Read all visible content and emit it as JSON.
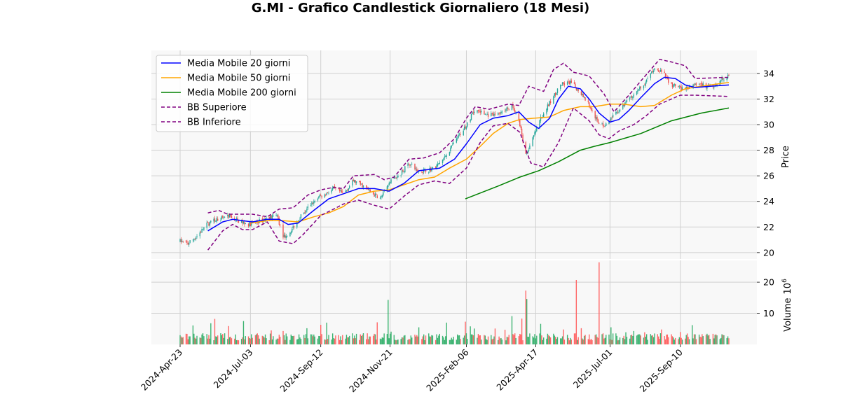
{
  "chart_data": {
    "type": "candlestick",
    "title": "G.MI - Grafico Candlestick Giornaliero (18 Mesi)",
    "price_panel": {
      "ylabel": "Price",
      "ylim": [
        19.5,
        35.8
      ],
      "yticks": [
        20,
        22,
        24,
        26,
        28,
        30,
        32,
        34
      ],
      "grid": true
    },
    "volume_panel": {
      "ylabel": "Volume",
      "ylabel_exponent": "6",
      "ylim": [
        0,
        27
      ],
      "yticks": [
        10,
        20
      ],
      "grid": true
    },
    "xlim": [
      "2024-04-23",
      "2025-10-29"
    ],
    "xticks": [
      "2024-Apr-23",
      "2024-Jul-03",
      "2024-Sep-12",
      "2024-Nov-21",
      "2025-Feb-06",
      "2025-Apr-17",
      "2025-Jul-01",
      "2025-Sep-10"
    ],
    "xtick_dates": [
      "2024-04-23",
      "2024-07-03",
      "2024-09-12",
      "2024-11-21",
      "2025-02-06",
      "2025-04-17",
      "2025-07-01",
      "2025-09-10"
    ],
    "legend": {
      "placement": "top-left",
      "entries": [
        {
          "label": "Media Mobile 20 giorni",
          "color": "#0000ff",
          "dash": "solid"
        },
        {
          "label": "Media Mobile 50 giorni",
          "color": "#ffa500",
          "dash": "solid"
        },
        {
          "label": "Media Mobile 200 giorni",
          "color": "#008000",
          "dash": "solid"
        },
        {
          "label": "BB Superiore",
          "color": "#800080",
          "dash": "dashed"
        },
        {
          "label": "BB Inferiore",
          "color": "#800080",
          "dash": "dashed"
        }
      ]
    },
    "colors": {
      "up": "#26a69a",
      "down": "#ef5350",
      "up_volume": "#3cb371",
      "down_volume": "#ff6666"
    },
    "close_path": [
      [
        "2024-04-23",
        20.9
      ],
      [
        "2024-05-01",
        20.7
      ],
      [
        "2024-05-10",
        21.3
      ],
      [
        "2024-05-20",
        22.2
      ],
      [
        "2024-05-30",
        22.6
      ],
      [
        "2024-06-10",
        22.9
      ],
      [
        "2024-06-20",
        22.5
      ],
      [
        "2024-07-01",
        22.2
      ],
      [
        "2024-07-10",
        22.4
      ],
      [
        "2024-07-20",
        22.7
      ],
      [
        "2024-07-30",
        22.9
      ],
      [
        "2024-08-05",
        21.2
      ],
      [
        "2024-08-12",
        21.6
      ],
      [
        "2024-08-22",
        22.8
      ],
      [
        "2024-09-01",
        23.7
      ],
      [
        "2024-09-12",
        24.4
      ],
      [
        "2024-09-25",
        25.0
      ],
      [
        "2024-10-05",
        24.6
      ],
      [
        "2024-10-15",
        25.6
      ],
      [
        "2024-10-25",
        25.2
      ],
      [
        "2024-11-05",
        24.5
      ],
      [
        "2024-11-12",
        24.3
      ],
      [
        "2024-11-21",
        25.5
      ],
      [
        "2024-12-01",
        26.1
      ],
      [
        "2024-12-10",
        27.0
      ],
      [
        "2024-12-20",
        26.3
      ],
      [
        "2025-01-05",
        26.6
      ],
      [
        "2025-01-15",
        27.4
      ],
      [
        "2025-01-25",
        28.6
      ],
      [
        "2025-02-06",
        30.0
      ],
      [
        "2025-02-15",
        31.2
      ],
      [
        "2025-02-25",
        30.8
      ],
      [
        "2025-03-05",
        30.7
      ],
      [
        "2025-03-15",
        31.1
      ],
      [
        "2025-03-25",
        31.4
      ],
      [
        "2025-04-01",
        30.0
      ],
      [
        "2025-04-07",
        27.6
      ],
      [
        "2025-04-12",
        28.5
      ],
      [
        "2025-04-22",
        30.5
      ],
      [
        "2025-05-02",
        31.8
      ],
      [
        "2025-05-12",
        33.1
      ],
      [
        "2025-05-22",
        33.3
      ],
      [
        "2025-06-01",
        32.6
      ],
      [
        "2025-06-10",
        31.5
      ],
      [
        "2025-06-18",
        30.3
      ],
      [
        "2025-06-26",
        29.9
      ],
      [
        "2025-07-05",
        30.7
      ],
      [
        "2025-07-15",
        31.5
      ],
      [
        "2025-07-25",
        32.3
      ],
      [
        "2025-08-05",
        33.2
      ],
      [
        "2025-08-15",
        34.4
      ],
      [
        "2025-08-22",
        34.2
      ],
      [
        "2025-09-01",
        33.1
      ],
      [
        "2025-09-10",
        32.8
      ],
      [
        "2025-09-20",
        33.0
      ],
      [
        "2025-10-01",
        33.2
      ],
      [
        "2025-10-10",
        32.9
      ],
      [
        "2025-10-20",
        33.4
      ],
      [
        "2025-10-29",
        33.9
      ]
    ],
    "ma20": [
      [
        "2024-05-21",
        21.7
      ],
      [
        "2024-06-05",
        22.4
      ],
      [
        "2024-06-15",
        22.6
      ],
      [
        "2024-06-25",
        22.5
      ],
      [
        "2024-07-05",
        22.4
      ],
      [
        "2024-07-20",
        22.6
      ],
      [
        "2024-08-01",
        22.6
      ],
      [
        "2024-08-10",
        22.2
      ],
      [
        "2024-08-20",
        22.3
      ],
      [
        "2024-09-05",
        23.3
      ],
      [
        "2024-09-20",
        24.2
      ],
      [
        "2024-10-05",
        24.6
      ],
      [
        "2024-10-20",
        25.0
      ],
      [
        "2024-11-05",
        25.0
      ],
      [
        "2024-11-20",
        24.8
      ],
      [
        "2024-12-05",
        25.4
      ],
      [
        "2024-12-20",
        26.4
      ],
      [
        "2025-01-10",
        26.6
      ],
      [
        "2025-01-25",
        27.3
      ],
      [
        "2025-02-06",
        28.5
      ],
      [
        "2025-02-20",
        30.0
      ],
      [
        "2025-03-05",
        30.5
      ],
      [
        "2025-03-20",
        30.7
      ],
      [
        "2025-03-31",
        31.0
      ],
      [
        "2025-04-10",
        30.2
      ],
      [
        "2025-04-20",
        29.7
      ],
      [
        "2025-05-01",
        30.5
      ],
      [
        "2025-05-10",
        32.0
      ],
      [
        "2025-05-20",
        33.0
      ],
      [
        "2025-06-01",
        32.8
      ],
      [
        "2025-06-10",
        32.0
      ],
      [
        "2025-06-20",
        30.9
      ],
      [
        "2025-07-01",
        30.2
      ],
      [
        "2025-07-10",
        30.4
      ],
      [
        "2025-07-20",
        31.1
      ],
      [
        "2025-08-01",
        32.1
      ],
      [
        "2025-08-15",
        33.2
      ],
      [
        "2025-08-25",
        33.7
      ],
      [
        "2025-09-05",
        33.6
      ],
      [
        "2025-09-15",
        33.1
      ],
      [
        "2025-09-25",
        32.9
      ],
      [
        "2025-10-10",
        33.0
      ],
      [
        "2025-10-29",
        33.1
      ]
    ],
    "ma50": [
      [
        "2024-07-03",
        22.3
      ],
      [
        "2024-07-20",
        22.5
      ],
      [
        "2024-08-05",
        22.5
      ],
      [
        "2024-08-20",
        22.4
      ],
      [
        "2024-09-05",
        22.8
      ],
      [
        "2024-09-20",
        23.1
      ],
      [
        "2024-10-05",
        23.6
      ],
      [
        "2024-10-20",
        24.5
      ],
      [
        "2024-11-05",
        24.8
      ],
      [
        "2024-11-20",
        24.9
      ],
      [
        "2024-12-05",
        25.3
      ],
      [
        "2024-12-20",
        25.7
      ],
      [
        "2025-01-05",
        25.9
      ],
      [
        "2025-01-20",
        26.6
      ],
      [
        "2025-02-06",
        27.3
      ],
      [
        "2025-02-20",
        28.3
      ],
      [
        "2025-03-05",
        29.3
      ],
      [
        "2025-03-20",
        30.1
      ],
      [
        "2025-04-01",
        30.4
      ],
      [
        "2025-04-15",
        30.5
      ],
      [
        "2025-05-01",
        30.6
      ],
      [
        "2025-05-15",
        31.1
      ],
      [
        "2025-06-01",
        31.4
      ],
      [
        "2025-06-15",
        31.4
      ],
      [
        "2025-07-01",
        31.6
      ],
      [
        "2025-07-15",
        31.6
      ],
      [
        "2025-08-01",
        31.4
      ],
      [
        "2025-08-15",
        31.5
      ],
      [
        "2025-09-01",
        32.3
      ],
      [
        "2025-09-15",
        32.8
      ],
      [
        "2025-10-01",
        33.0
      ],
      [
        "2025-10-29",
        33.3
      ]
    ],
    "ma200": [
      [
        "2025-02-05",
        24.2
      ],
      [
        "2025-03-10",
        25.2
      ],
      [
        "2025-04-01",
        25.9
      ],
      [
        "2025-04-20",
        26.4
      ],
      [
        "2025-05-10",
        27.1
      ],
      [
        "2025-06-01",
        28.0
      ],
      [
        "2025-06-15",
        28.3
      ],
      [
        "2025-07-01",
        28.6
      ],
      [
        "2025-08-01",
        29.3
      ],
      [
        "2025-09-01",
        30.3
      ],
      [
        "2025-10-01",
        30.9
      ],
      [
        "2025-10-29",
        31.3
      ]
    ],
    "bb_upper": [
      [
        "2024-05-21",
        23.1
      ],
      [
        "2024-06-01",
        23.3
      ],
      [
        "2024-06-10",
        23.0
      ],
      [
        "2024-06-20",
        23.0
      ],
      [
        "2024-07-05",
        23.0
      ],
      [
        "2024-07-20",
        22.8
      ],
      [
        "2024-08-01",
        23.4
      ],
      [
        "2024-08-15",
        23.5
      ],
      [
        "2024-08-30",
        24.5
      ],
      [
        "2024-09-12",
        24.9
      ],
      [
        "2024-09-25",
        25.1
      ],
      [
        "2024-10-05",
        25.0
      ],
      [
        "2024-10-15",
        26.0
      ],
      [
        "2024-11-05",
        26.1
      ],
      [
        "2024-11-15",
        25.7
      ],
      [
        "2024-11-25",
        25.9
      ],
      [
        "2024-12-10",
        27.3
      ],
      [
        "2024-12-25",
        27.4
      ],
      [
        "2025-01-10",
        27.8
      ],
      [
        "2025-01-25",
        28.9
      ],
      [
        "2025-02-06",
        30.5
      ],
      [
        "2025-02-15",
        31.4
      ],
      [
        "2025-03-01",
        31.2
      ],
      [
        "2025-03-20",
        31.6
      ],
      [
        "2025-03-31",
        31.5
      ],
      [
        "2025-04-10",
        33.0
      ],
      [
        "2025-04-25",
        32.6
      ],
      [
        "2025-05-05",
        34.3
      ],
      [
        "2025-05-15",
        34.8
      ],
      [
        "2025-05-25",
        34.1
      ],
      [
        "2025-06-10",
        33.8
      ],
      [
        "2025-06-25",
        32.4
      ],
      [
        "2025-07-05",
        31.0
      ],
      [
        "2025-07-20",
        32.3
      ],
      [
        "2025-08-01",
        33.4
      ],
      [
        "2025-08-20",
        35.1
      ],
      [
        "2025-09-01",
        34.9
      ],
      [
        "2025-09-15",
        34.6
      ],
      [
        "2025-09-25",
        33.6
      ],
      [
        "2025-10-29",
        33.7
      ]
    ],
    "bb_lower": [
      [
        "2024-05-21",
        20.2
      ],
      [
        "2024-06-05",
        21.7
      ],
      [
        "2024-06-15",
        22.2
      ],
      [
        "2024-06-25",
        21.8
      ],
      [
        "2024-07-05",
        21.8
      ],
      [
        "2024-07-20",
        22.4
      ],
      [
        "2024-08-01",
        20.9
      ],
      [
        "2024-08-15",
        20.7
      ],
      [
        "2024-08-25",
        21.4
      ],
      [
        "2024-09-12",
        22.9
      ],
      [
        "2024-09-25",
        23.4
      ],
      [
        "2024-10-05",
        23.8
      ],
      [
        "2024-10-20",
        24.1
      ],
      [
        "2024-11-05",
        23.7
      ],
      [
        "2024-11-20",
        23.4
      ],
      [
        "2024-12-05",
        24.4
      ],
      [
        "2024-12-20",
        25.3
      ],
      [
        "2025-01-05",
        25.6
      ],
      [
        "2025-01-20",
        25.4
      ],
      [
        "2025-02-06",
        26.6
      ],
      [
        "2025-02-20",
        28.6
      ],
      [
        "2025-03-05",
        29.9
      ],
      [
        "2025-03-20",
        30.1
      ],
      [
        "2025-04-01",
        29.4
      ],
      [
        "2025-04-12",
        27.0
      ],
      [
        "2025-04-25",
        26.7
      ],
      [
        "2025-05-10",
        28.6
      ],
      [
        "2025-05-25",
        31.3
      ],
      [
        "2025-06-10",
        30.3
      ],
      [
        "2025-06-20",
        29.2
      ],
      [
        "2025-06-30",
        28.9
      ],
      [
        "2025-07-10",
        29.5
      ],
      [
        "2025-07-25",
        30.0
      ],
      [
        "2025-08-05",
        30.6
      ],
      [
        "2025-08-20",
        31.6
      ],
      [
        "2025-09-01",
        32.0
      ],
      [
        "2025-09-10",
        32.3
      ],
      [
        "2025-09-25",
        32.3
      ],
      [
        "2025-10-29",
        32.2
      ]
    ],
    "volume_spikes_millions": [
      [
        "2024-05-06",
        6.1
      ],
      [
        "2024-05-24",
        6.8
      ],
      [
        "2024-05-28",
        8.2
      ],
      [
        "2024-06-11",
        5.9
      ],
      [
        "2024-06-26",
        7.5
      ],
      [
        "2024-07-24",
        4.5
      ],
      [
        "2024-08-05",
        4.3
      ],
      [
        "2024-08-29",
        5.2
      ],
      [
        "2024-09-12",
        6.3
      ],
      [
        "2024-09-18",
        7.0
      ],
      [
        "2024-11-08",
        7.1
      ],
      [
        "2024-11-19",
        14.3
      ],
      [
        "2024-11-22",
        4.1
      ],
      [
        "2024-12-20",
        5.5
      ],
      [
        "2025-01-17",
        7.0
      ],
      [
        "2025-02-05",
        7.3
      ],
      [
        "2025-02-10",
        5.8
      ],
      [
        "2025-02-14",
        5.1
      ],
      [
        "2025-03-07",
        5.1
      ],
      [
        "2025-03-17",
        4.7
      ],
      [
        "2025-03-24",
        9.1
      ],
      [
        "2025-04-03",
        8.3
      ],
      [
        "2025-04-07",
        17.3
      ],
      [
        "2025-04-08",
        14.6
      ],
      [
        "2025-04-22",
        6.6
      ],
      [
        "2025-05-15",
        4.8
      ],
      [
        "2025-05-28",
        20.7
      ],
      [
        "2025-06-02",
        5.2
      ],
      [
        "2025-06-20",
        26.4
      ],
      [
        "2025-07-02",
        5.5
      ],
      [
        "2025-07-17",
        3.9
      ],
      [
        "2025-07-25",
        4.3
      ],
      [
        "2025-08-05",
        3.9
      ],
      [
        "2025-08-22",
        4.8
      ],
      [
        "2025-09-10",
        4.0
      ],
      [
        "2025-09-22",
        6.2
      ],
      [
        "2025-10-02",
        3.3
      ],
      [
        "2025-10-17",
        2.9
      ],
      [
        "2025-10-28",
        2.6
      ]
    ]
  }
}
